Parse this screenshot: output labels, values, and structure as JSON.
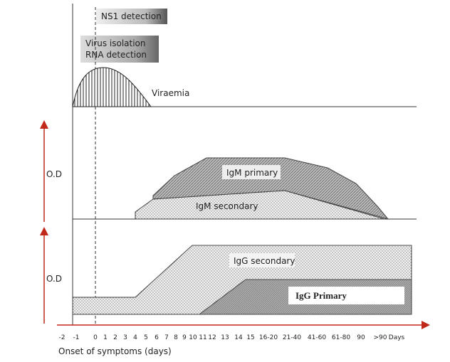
{
  "detection": {
    "ns1": "NS1 detection",
    "virus_isolation": [
      "Virus isolation",
      "RNA detection"
    ]
  },
  "panels": {
    "viraemia": "Viraemia",
    "igm_primary": "IgM primary",
    "igm_secondary": "IgM secondary",
    "igg_secondary": "IgG secondary",
    "igg_primary": "IgG Primary",
    "y_label_top": "O.D",
    "y_label_bottom": "O.D"
  },
  "x_axis": {
    "ticks": [
      "-2",
      "-1",
      "0",
      "1",
      "2",
      "3",
      "4",
      "5",
      "6",
      "7",
      "8",
      "9",
      "10",
      "11",
      "12",
      "13",
      "14",
      "15",
      "16-20",
      "21-40",
      "41-60",
      "61-80",
      "90",
      ">90",
      "Days"
    ],
    "title": "Onset of symptoms (days)"
  }
}
